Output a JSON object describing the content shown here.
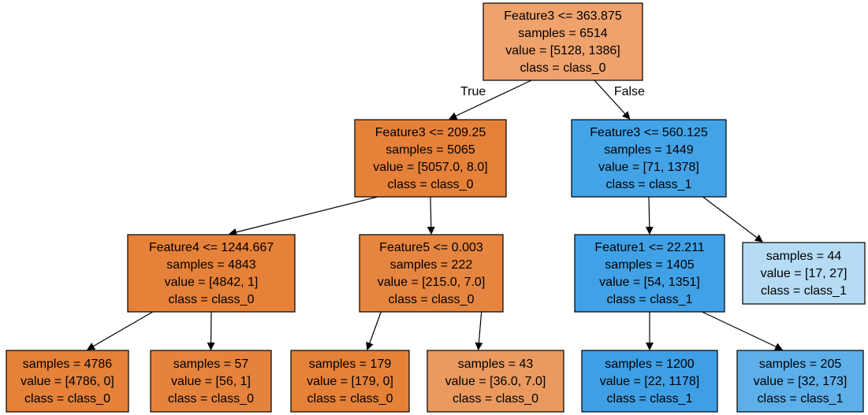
{
  "tree": {
    "nodes": [
      {
        "id": "n0",
        "lines": [
          "Feature3 <= 363.875",
          "samples = 6514",
          "value = [5128, 1386]",
          "class = class_0"
        ],
        "color": "#efa26c"
      },
      {
        "id": "n1",
        "lines": [
          "Feature3 <= 209.25",
          "samples = 5065",
          "value = [5057.0, 8.0]",
          "class = class_0"
        ],
        "color": "#e6813a"
      },
      {
        "id": "n2",
        "lines": [
          "Feature3 <= 560.125",
          "samples = 1449",
          "value = [71, 1378]",
          "class = class_1"
        ],
        "color": "#43a3e7"
      },
      {
        "id": "n3",
        "lines": [
          "Feature4 <= 1244.667",
          "samples = 4843",
          "value = [4842, 1]",
          "class = class_0"
        ],
        "color": "#e68139"
      },
      {
        "id": "n4",
        "lines": [
          "Feature5 <= 0.003",
          "samples = 222",
          "value = [215.0, 7.0]",
          "class = class_0"
        ],
        "color": "#e6853f"
      },
      {
        "id": "n5",
        "lines": [
          "Feature1 <= 22.211",
          "samples = 1405",
          "value = [54, 1351]",
          "class = class_1"
        ],
        "color": "#41a1e6"
      },
      {
        "id": "n6",
        "lines": [
          "samples = 44",
          "value = [17, 27]",
          "class = class_1"
        ],
        "color": "#b6dbf5"
      },
      {
        "id": "n7",
        "lines": [
          "samples = 4786",
          "value = [4786, 0]",
          "class = class_0"
        ],
        "color": "#e58139"
      },
      {
        "id": "n8",
        "lines": [
          "samples = 57",
          "value = [56, 1]",
          "class = class_0"
        ],
        "color": "#e5833d"
      },
      {
        "id": "n9",
        "lines": [
          "samples = 179",
          "value = [179, 0]",
          "class = class_0"
        ],
        "color": "#e58139"
      },
      {
        "id": "n10",
        "lines": [
          "samples = 43",
          "value = [36.0, 7.0]",
          "class = class_0"
        ],
        "color": "#ea9a5f"
      },
      {
        "id": "n11",
        "lines": [
          "samples = 1200",
          "value = [22, 1178]",
          "class = class_1"
        ],
        "color": "#3e9fe5"
      },
      {
        "id": "n12",
        "lines": [
          "samples = 205",
          "value = [32, 173]",
          "class = class_1"
        ],
        "color": "#5dafea"
      }
    ],
    "edges": [
      {
        "from": "n0",
        "to": "n1",
        "label": "True"
      },
      {
        "from": "n0",
        "to": "n2",
        "label": "False"
      },
      {
        "from": "n1",
        "to": "n3",
        "label": ""
      },
      {
        "from": "n1",
        "to": "n4",
        "label": ""
      },
      {
        "from": "n2",
        "to": "n5",
        "label": ""
      },
      {
        "from": "n2",
        "to": "n6",
        "label": ""
      },
      {
        "from": "n3",
        "to": "n7",
        "label": ""
      },
      {
        "from": "n3",
        "to": "n8",
        "label": ""
      },
      {
        "from": "n4",
        "to": "n9",
        "label": ""
      },
      {
        "from": "n4",
        "to": "n10",
        "label": ""
      },
      {
        "from": "n5",
        "to": "n11",
        "label": ""
      },
      {
        "from": "n5",
        "to": "n12",
        "label": ""
      }
    ]
  }
}
